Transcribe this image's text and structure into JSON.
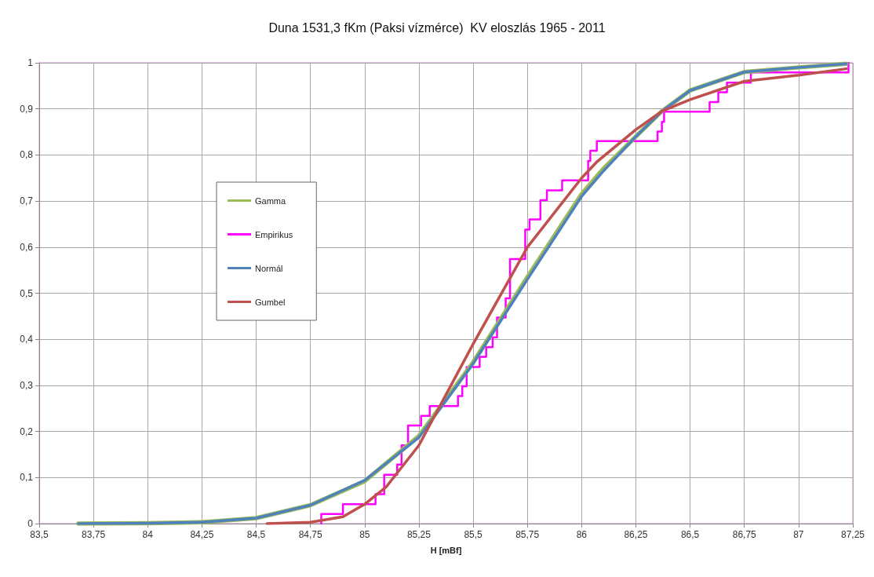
{
  "chart_data": {
    "type": "line",
    "title": "Duna 1531,3 fKm (Paksi vízmérce)  KV eloszlás 1965 - 2011",
    "xlabel": "H [mBf]",
    "xlim": [
      83.5,
      87.25
    ],
    "xticks": [
      {
        "value": 83.5,
        "label": "83,5"
      },
      {
        "value": 83.75,
        "label": "83,75"
      },
      84,
      {
        "value": 84.25,
        "label": "84,25"
      },
      {
        "value": 84.5,
        "label": "84,5"
      },
      {
        "value": 84.75,
        "label": "84,75"
      },
      85,
      {
        "value": 85.25,
        "label": "85,25"
      },
      {
        "value": 85.5,
        "label": "85,5"
      },
      {
        "value": 85.75,
        "label": "85,75"
      },
      86,
      {
        "value": 86.25,
        "label": "86,25"
      },
      {
        "value": 86.5,
        "label": "86,5"
      },
      {
        "value": 86.75,
        "label": "86,75"
      },
      87,
      {
        "value": 87.25,
        "label": "87,25"
      }
    ],
    "ylim": [
      0,
      1
    ],
    "yticks": [
      0,
      {
        "value": 0.1,
        "label": "0,1"
      },
      {
        "value": 0.2,
        "label": "0,2"
      },
      {
        "value": 0.3,
        "label": "0,3"
      },
      {
        "value": 0.4,
        "label": "0,4"
      },
      {
        "value": 0.5,
        "label": "0,5"
      },
      {
        "value": 0.6,
        "label": "0,6"
      },
      {
        "value": 0.7,
        "label": "0,7"
      },
      {
        "value": 0.8,
        "label": "0,8"
      },
      {
        "value": 0.9,
        "label": "0,9"
      },
      1
    ],
    "grid": true,
    "legend": "left",
    "marker": "none",
    "line_style": "solid",
    "series": [
      {
        "name": "Gamma",
        "color": "#9bbb59",
        "x": [
          83.68,
          84,
          84.25,
          84.5,
          84.75,
          85,
          85.25,
          85.5,
          85.75,
          86,
          86.1,
          86.25,
          86.37,
          86.5,
          86.75,
          87,
          87.22
        ],
        "values": [
          0,
          0.001,
          0.003,
          0.012,
          0.04,
          0.092,
          0.19,
          0.35,
          0.535,
          0.715,
          0.77,
          0.84,
          0.895,
          0.94,
          0.98,
          0.99,
          0.998
        ]
      },
      {
        "name": "Empirikus",
        "type": "step",
        "color": "#ff00ff",
        "x": [
          84.8,
          84.8,
          84.9,
          85.05,
          85.09,
          85.15,
          85.17,
          85.2,
          85.26,
          85.3,
          85.43,
          85.45,
          85.47,
          85.53,
          85.56,
          85.59,
          85.61,
          85.65,
          85.67,
          85.74,
          85.76,
          85.81,
          85.84,
          85.91,
          86.03,
          86.04,
          86.07,
          86.35,
          86.37,
          86.38,
          86.59,
          86.63,
          86.67,
          86.78,
          87.23
        ],
        "values": [
          0,
          0.021,
          0.042,
          0.064,
          0.106,
          0.128,
          0.17,
          0.213,
          0.234,
          0.255,
          0.277,
          0.298,
          0.34,
          0.362,
          0.383,
          0.404,
          0.447,
          0.489,
          0.574,
          0.638,
          0.66,
          0.702,
          0.723,
          0.745,
          0.787,
          0.809,
          0.83,
          0.851,
          0.872,
          0.894,
          0.915,
          0.936,
          0.957,
          0.979,
          1.0
        ]
      },
      {
        "name": "Normál",
        "color": "#4f81bd",
        "x": [
          83.68,
          84,
          84.25,
          84.5,
          84.75,
          85,
          85.25,
          85.5,
          85.75,
          86,
          86.1,
          86.25,
          86.37,
          86.5,
          86.75,
          87,
          87.22
        ],
        "values": [
          0,
          0.001,
          0.003,
          0.012,
          0.04,
          0.094,
          0.187,
          0.347,
          0.53,
          0.71,
          0.765,
          0.84,
          0.895,
          0.94,
          0.98,
          0.99,
          0.998
        ]
      },
      {
        "name": "Gumbel",
        "color": "#c0504d",
        "x": [
          84.55,
          84.75,
          84.9,
          85,
          85.1,
          85.25,
          85.5,
          85.75,
          86,
          86.07,
          86.25,
          86.37,
          86.5,
          86.75,
          87,
          87.22
        ],
        "values": [
          0,
          0.003,
          0.015,
          0.042,
          0.08,
          0.17,
          0.39,
          0.6,
          0.75,
          0.785,
          0.855,
          0.895,
          0.92,
          0.96,
          0.973,
          0.987
        ]
      }
    ]
  }
}
